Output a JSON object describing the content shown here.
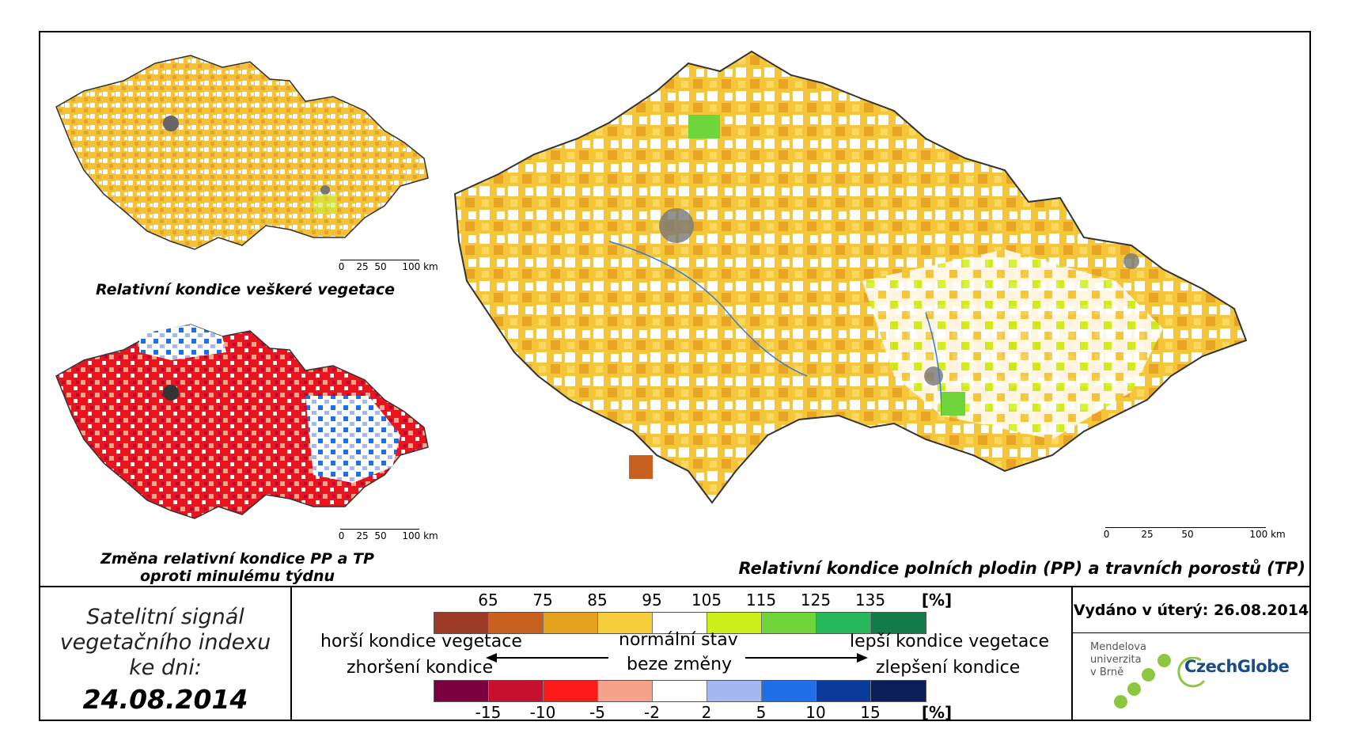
{
  "maps": {
    "main_title": "Relativní kondice polních plodin (PP) a travních porostů (TP)",
    "top_left_title": "Relativní kondice veškeré vegetace",
    "bottom_left_title_line1": "Změna relativní kondice PP a TP",
    "bottom_left_title_line2": "oproti minulému týdnu",
    "scale_labels": [
      "0",
      "25",
      "50",
      "100 km"
    ]
  },
  "satellite": {
    "line1": "Satelitní signál",
    "line2": "vegetačního indexu",
    "line3": "ke dni:",
    "date": "24.08.2014"
  },
  "legend": {
    "top_values": [
      "65",
      "75",
      "85",
      "95",
      "105",
      "115",
      "125",
      "135"
    ],
    "top_unit": "[%]",
    "top_colors": [
      "#9c3b28",
      "#c8611f",
      "#e5a21f",
      "#f6cd3a",
      "#ffffff",
      "#cdf01a",
      "#6ed63a",
      "#26b85a",
      "#137a4a"
    ],
    "bottom_values": [
      "-15",
      "-10",
      "-5",
      "-2",
      "2",
      "5",
      "10",
      "15"
    ],
    "bottom_unit": "[%]",
    "bottom_colors": [
      "#7a0040",
      "#c8102e",
      "#ff1a1a",
      "#f5a38a",
      "#ffffff",
      "#a6b8f2",
      "#1e6fe8",
      "#0a3a9c",
      "#0c1d5c"
    ],
    "worse_condition": "horší kondice vegetace",
    "worse_change": "zhoršení kondice",
    "normal": "normální stav",
    "no_change": "beze změny",
    "better_condition": "lepší kondice vegetace",
    "better_change": "zlepšení kondice"
  },
  "issued": "Vydáno v úterý: 26.08.2014",
  "logos": {
    "mendel_line1": "Mendelova",
    "mendel_line2": "univerzita",
    "mendel_line3": "v Brně",
    "czechglobe": "CzechGlobe"
  }
}
